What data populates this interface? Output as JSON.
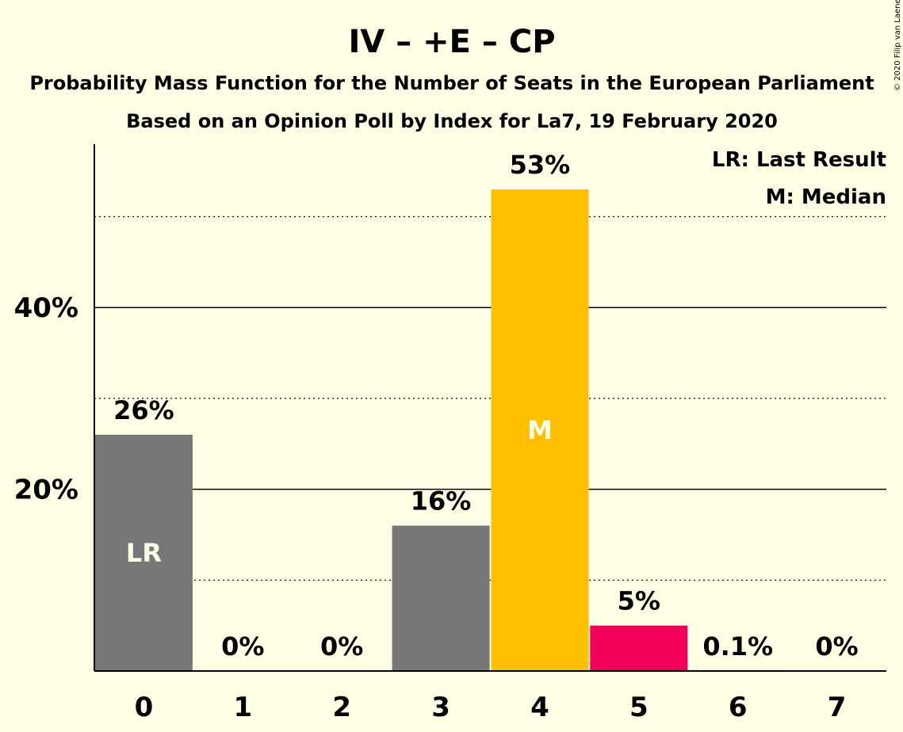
{
  "title": "IV – +E – CP",
  "subtitle1": "Probability Mass Function for the Number of Seats in the European Parliament",
  "subtitle2": "Based on an Opinion Poll by Index for La7, 19 February 2020",
  "copyright": "© 2020 Filip van Laenen",
  "legend": {
    "last_result": "LR: Last Result",
    "median": "M: Median"
  },
  "chart_data": {
    "type": "bar",
    "title": "IV – +E – CP",
    "categories": [
      "0",
      "1",
      "2",
      "3",
      "4",
      "5",
      "6",
      "7"
    ],
    "values": [
      26,
      0,
      0,
      16,
      53,
      5,
      0.1,
      0
    ],
    "value_labels": [
      "26%",
      "0%",
      "0%",
      "16%",
      "53%",
      "5%",
      "0.1%",
      "0%"
    ],
    "bar_tags": [
      "LR",
      "",
      "",
      "",
      "M",
      "",
      "",
      ""
    ],
    "bar_colors": [
      "#777777",
      "#777777",
      "#777777",
      "#777777",
      "#ffc000",
      "#f0005a",
      "#777777",
      "#777777"
    ],
    "ylim": [
      0,
      58
    ],
    "y_ticks": [
      20,
      40
    ],
    "y_tick_labels": [
      "20%",
      "40%"
    ],
    "y_minor_gridlines": [
      10,
      30,
      50
    ],
    "grid": true,
    "legend_position": "top-right"
  }
}
